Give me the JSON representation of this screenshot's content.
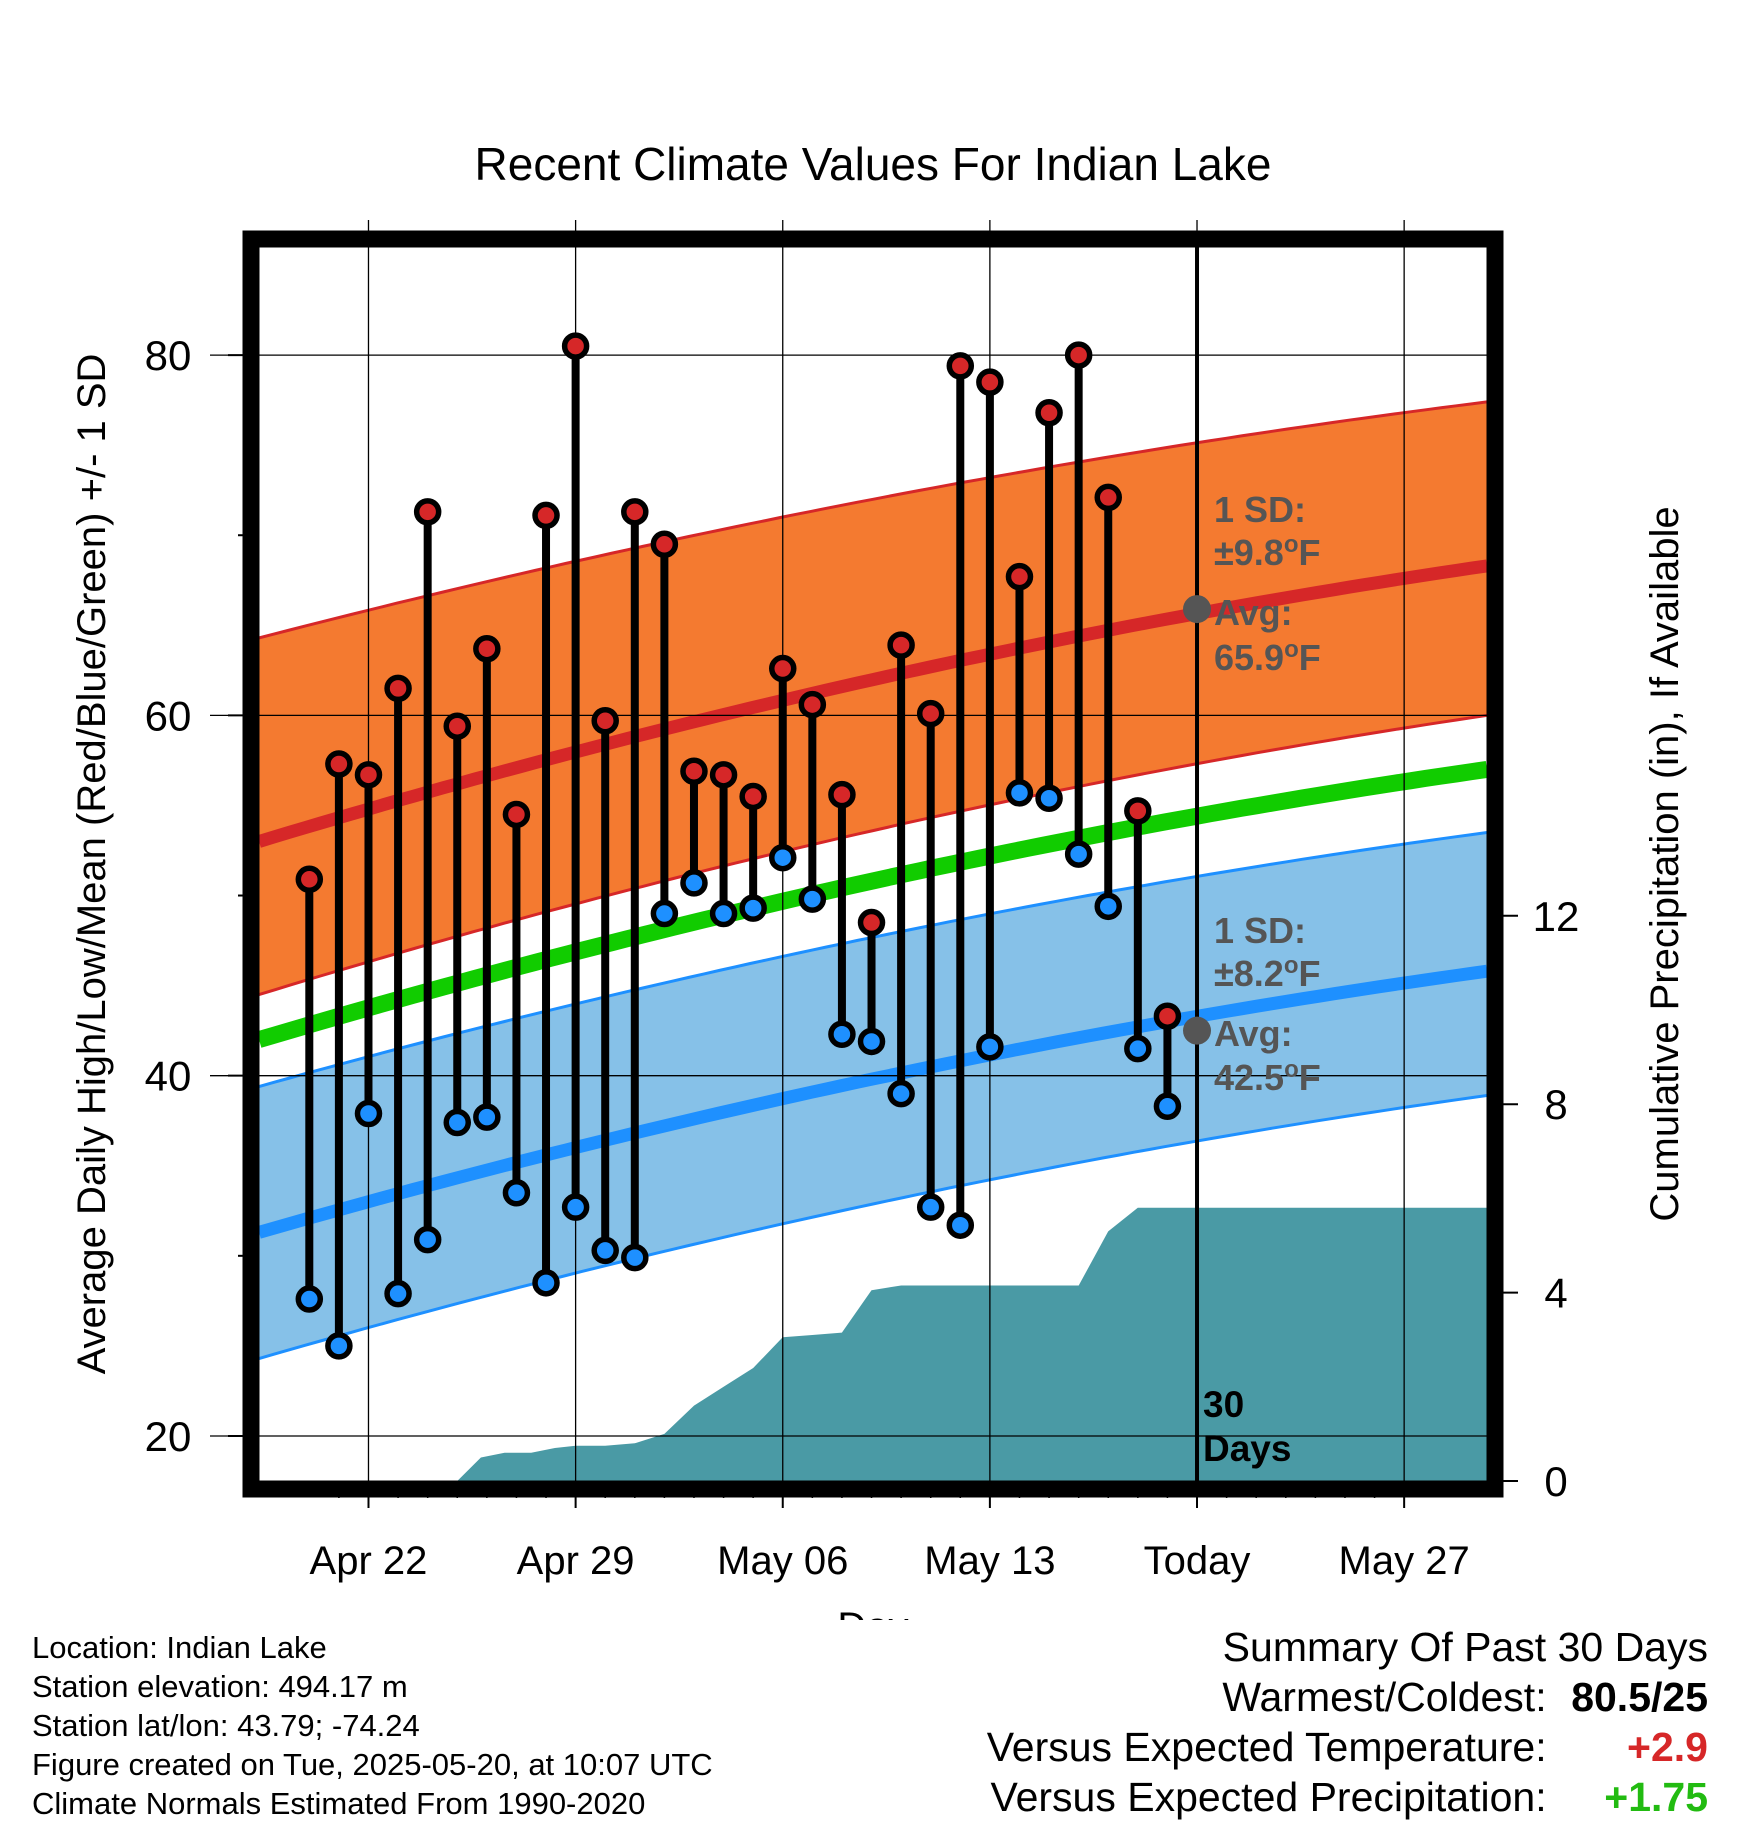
{
  "chart_data": {
    "type": "line",
    "title": "Recent Climate Values For Indian Lake",
    "xlabel": "Day",
    "ylabel_left": "Average Daily High/Low/Mean (Red/Blue/Green) +/- 1 SD",
    "ylabel_right": "Cumulative Precipitation (in), If Available",
    "x_tick_labels": [
      "Apr 22",
      "Apr 29",
      "May 06",
      "May 13",
      "Today",
      "May 27"
    ],
    "x_tick_days": [
      22,
      29,
      36,
      43,
      50,
      57
    ],
    "xlim": [
      18.3,
      59.8
    ],
    "ylim_left": [
      17.5,
      86
    ],
    "y_ticks_left": [
      20,
      40,
      60,
      80
    ],
    "ylim_right": [
      0,
      26.2
    ],
    "y_ticks_right": [
      0,
      4,
      8,
      12
    ],
    "today_day": 50,
    "period_label": "30 Days",
    "normals": {
      "high_mean": {
        "start": 53.0,
        "end": 68.3
      },
      "high_lower": {
        "start": 44.5,
        "end": 60.0
      },
      "high_upper": {
        "start": 64.3,
        "end": 77.4
      },
      "mean": {
        "start": 42.0,
        "end": 57.0
      },
      "low_mean": {
        "start": 31.3,
        "end": 45.8
      },
      "low_lower": {
        "start": 24.3,
        "end": 38.9
      },
      "low_upper": {
        "start": 39.4,
        "end": 53.5
      }
    },
    "high_sd_label": "1 SD:",
    "high_sd_value": "±9.8°F",
    "high_avg_label": "Avg:",
    "high_avg_value": "65.9°F",
    "low_sd_label": "1 SD:",
    "low_sd_value": "±8.2°F",
    "low_avg_label": "Avg:",
    "low_avg_value": "42.5°F",
    "high_avg_today": 65.9,
    "low_avg_today": 42.5,
    "days": [
      20,
      21,
      22,
      23,
      24,
      25,
      26,
      27,
      28,
      29,
      30,
      31,
      32,
      33,
      34,
      35,
      36,
      37,
      38,
      39,
      40,
      41,
      42,
      43,
      44,
      45,
      46,
      47,
      48,
      49
    ],
    "highs": [
      50.9,
      57.3,
      56.7,
      61.5,
      71.3,
      59.4,
      63.7,
      54.5,
      71.1,
      80.5,
      59.7,
      71.3,
      69.5,
      56.9,
      56.7,
      55.5,
      62.6,
      60.6,
      55.6,
      48.5,
      63.9,
      60.1,
      79.4,
      78.5,
      67.7,
      76.8,
      80.0,
      72.1,
      54.7,
      43.3
    ],
    "lows": [
      27.6,
      25.0,
      37.9,
      27.9,
      30.9,
      37.4,
      37.7,
      33.5,
      28.5,
      32.7,
      30.3,
      29.9,
      49.0,
      50.7,
      49.0,
      49.3,
      52.1,
      49.8,
      42.3,
      41.9,
      39.0,
      32.7,
      31.7,
      41.6,
      55.7,
      55.4,
      52.3,
      49.4,
      41.5,
      38.3
    ],
    "precip_cumulative": {
      "days": [
        18.3,
        21,
        21.5,
        22,
        23,
        24,
        25,
        25.8,
        26.6,
        27.5,
        28.3,
        29,
        30,
        31,
        32,
        33,
        34,
        35,
        36,
        37,
        38,
        39,
        40,
        41,
        42,
        43,
        44,
        45,
        46,
        47,
        48,
        50,
        59.8
      ],
      "values": [
        0,
        0,
        0,
        0,
        0,
        0,
        0,
        0.5,
        0.6,
        0.6,
        0.7,
        0.75,
        0.75,
        0.8,
        1.0,
        1.6,
        2.0,
        2.4,
        3.05,
        3.1,
        3.15,
        4.05,
        4.15,
        4.15,
        4.15,
        4.15,
        4.15,
        4.15,
        4.15,
        5.3,
        5.8,
        5.8,
        5.8
      ]
    },
    "colors": {
      "high_band": "#f47a30",
      "high_line": "#d62728",
      "low_band": "#86c1e8",
      "low_line": "#1e90ff",
      "mean_line": "#11cc00",
      "precip": "#4a9aa5",
      "high_dot": "#d62728",
      "low_dot": "#1e90ff",
      "avg_dot": "#555555",
      "sd_text": "#555555"
    }
  },
  "info": {
    "location": "Location: Indian Lake",
    "elevation": "Station elevation: 494.17 m",
    "latlon": "Station lat/lon: 43.79; -74.24",
    "created": "Figure created on Tue, 2025-05-20, at 10:07 UTC",
    "normals": "Climate Normals Estimated From 1990-2020"
  },
  "summary": {
    "title": "Summary Of Past 30 Days",
    "warmest_label": "Warmest/Coldest:",
    "warmest_value": "80.5/25",
    "temp_label": "Versus Expected Temperature:",
    "temp_value": "+2.9",
    "precip_label": "Versus Expected Precipitation:",
    "precip_value": "+1.75"
  }
}
